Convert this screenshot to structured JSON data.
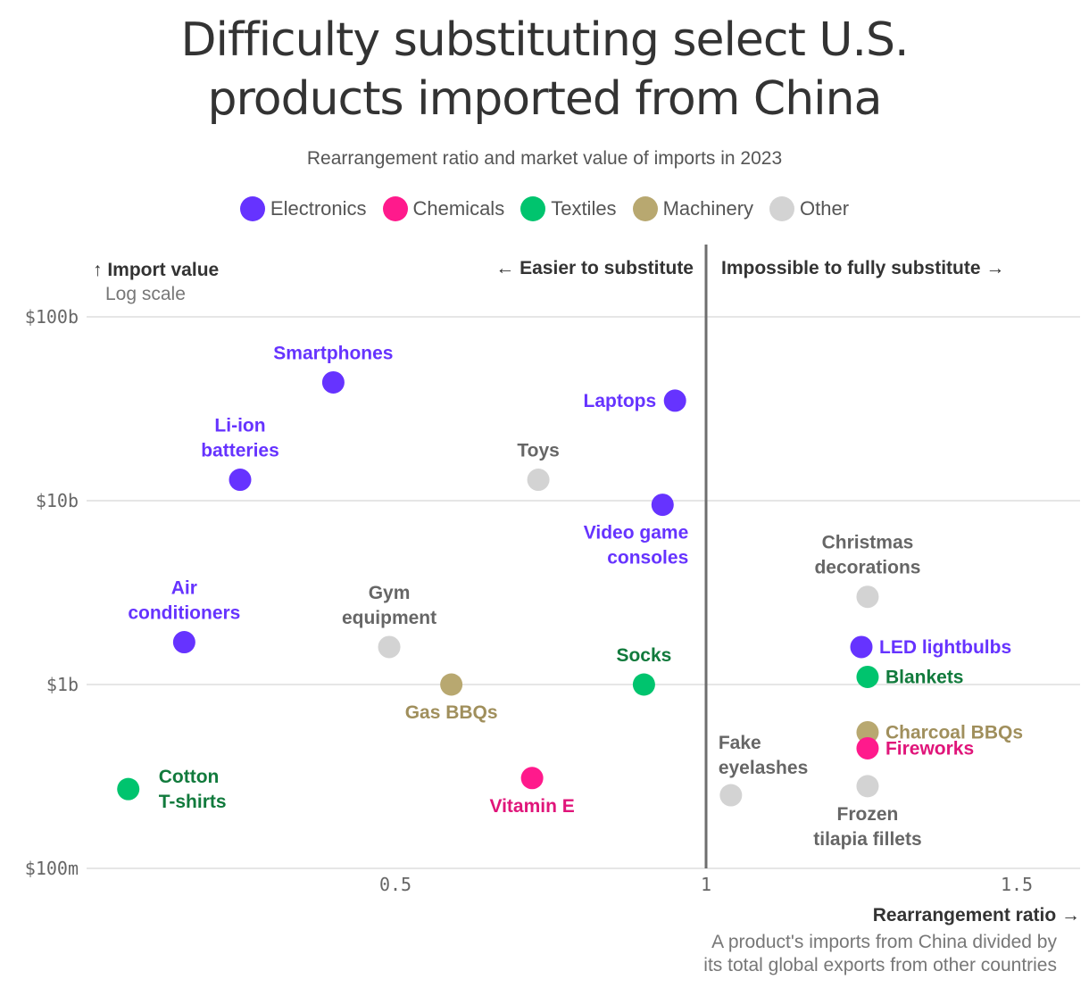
{
  "title_lines": [
    "Difficulty substituting select U.S.",
    "products imported from China"
  ],
  "subtitle": "Rearrangement ratio and market value of imports in 2023",
  "legend": [
    {
      "label": "Electronics",
      "color": "#6633ff"
    },
    {
      "label": "Chemicals",
      "color": "#ff1a8c"
    },
    {
      "label": "Textiles",
      "color": "#00c46e"
    },
    {
      "label": "Machinery",
      "color": "#b8a870"
    },
    {
      "label": "Other",
      "color": "#d3d3d3"
    }
  ],
  "y_axis": {
    "title": "↑ Import value",
    "note": "Log scale"
  },
  "x_axis": {
    "title": "Rearrangement ratio →",
    "note_lines": [
      "A product's imports from China divided by",
      "its total global exports from other countries"
    ]
  },
  "region_left": "← Easier to substitute",
  "region_right": "Impossible to fully substitute →",
  "chart_data": {
    "type": "scatter",
    "title": "Difficulty substituting select U.S. products imported from China",
    "subtitle": "Rearrangement ratio and market value of imports in 2023",
    "xlabel": "Rearrangement ratio",
    "ylabel": "Import value",
    "y_scale": "log",
    "xlim": [
      0.0,
      1.63
    ],
    "ylim": [
      0.1,
      100
    ],
    "x_ticks": [
      {
        "value": 0.5,
        "label": "0.5"
      },
      {
        "value": 1,
        "label": "1"
      },
      {
        "value": 1.5,
        "label": "1.5"
      }
    ],
    "y_ticks": [
      {
        "value": 100,
        "label": "$100b"
      },
      {
        "value": 10,
        "label": "$10b"
      },
      {
        "value": 1,
        "label": "$1b"
      },
      {
        "value": 0.1,
        "label": "$100m"
      }
    ],
    "reference_line_x": 1,
    "gridlines": "horizontal",
    "category_colors": {
      "Electronics": {
        "dot": "#6633ff",
        "label": "#6633ff"
      },
      "Chemicals": {
        "dot": "#ff1a8c",
        "label": "#e0157a"
      },
      "Textiles": {
        "dot": "#00c46e",
        "label": "#117a3c"
      },
      "Machinery": {
        "dot": "#b8a870",
        "label": "#a08f5c"
      },
      "Other": {
        "dot": "#d3d3d3",
        "label": "#666666"
      }
    },
    "points": [
      {
        "name": "Smartphones",
        "category": "Electronics",
        "x": 0.4,
        "y": 44,
        "label_lines": [
          "Smartphones"
        ],
        "label_pos": "above"
      },
      {
        "name": "Laptops",
        "category": "Electronics",
        "x": 0.95,
        "y": 35,
        "label_lines": [
          "Laptops"
        ],
        "label_pos": "left"
      },
      {
        "name": "Li-ion batteries",
        "category": "Electronics",
        "x": 0.25,
        "y": 13,
        "label_lines": [
          "Li-ion",
          "batteries"
        ],
        "label_pos": "above"
      },
      {
        "name": "Toys",
        "category": "Other",
        "x": 0.73,
        "y": 13,
        "label_lines": [
          "Toys"
        ],
        "label_pos": "above"
      },
      {
        "name": "Video game consoles",
        "category": "Electronics",
        "x": 0.93,
        "y": 9.5,
        "label_lines": [
          "Video game",
          "consoles"
        ],
        "label_pos": "below-left"
      },
      {
        "name": "Christmas decorations",
        "category": "Other",
        "x": 1.26,
        "y": 3.0,
        "label_lines": [
          "Christmas",
          "decorations"
        ],
        "label_pos": "above"
      },
      {
        "name": "Air conditioners",
        "category": "Electronics",
        "x": 0.16,
        "y": 1.7,
        "label_lines": [
          "Air",
          "conditioners"
        ],
        "label_pos": "above"
      },
      {
        "name": "Gym equipment",
        "category": "Other",
        "x": 0.49,
        "y": 1.6,
        "label_lines": [
          "Gym",
          "equipment"
        ],
        "label_pos": "above"
      },
      {
        "name": "LED lightbulbs",
        "category": "Electronics",
        "x": 1.25,
        "y": 1.6,
        "label_lines": [
          "LED lightbulbs"
        ],
        "label_pos": "right"
      },
      {
        "name": "Blankets",
        "category": "Textiles",
        "x": 1.26,
        "y": 1.1,
        "label_lines": [
          "Blankets"
        ],
        "label_pos": "right"
      },
      {
        "name": "Gas BBQs",
        "category": "Machinery",
        "x": 0.59,
        "y": 1.0,
        "label_lines": [
          "Gas BBQs"
        ],
        "label_pos": "below"
      },
      {
        "name": "Socks",
        "category": "Textiles",
        "x": 0.9,
        "y": 1.0,
        "label_lines": [
          "Socks"
        ],
        "label_pos": "above"
      },
      {
        "name": "Charcoal BBQs",
        "category": "Machinery",
        "x": 1.26,
        "y": 0.55,
        "label_lines": [
          "Charcoal BBQs"
        ],
        "label_pos": "right"
      },
      {
        "name": "Fireworks",
        "category": "Chemicals",
        "x": 1.26,
        "y": 0.45,
        "label_lines": [
          "Fireworks"
        ],
        "label_pos": "right"
      },
      {
        "name": "Vitamin E",
        "category": "Chemicals",
        "x": 0.72,
        "y": 0.31,
        "label_lines": [
          "Vitamin E"
        ],
        "label_pos": "below"
      },
      {
        "name": "Cotton T-shirts",
        "category": "Textiles",
        "x": 0.07,
        "y": 0.27,
        "label_lines": [
          "Cotton",
          "T-shirts"
        ],
        "label_pos": "right"
      },
      {
        "name": "Frozen tilapia fillets",
        "category": "Other",
        "x": 1.26,
        "y": 0.28,
        "label_lines": [
          "Frozen",
          "tilapia fillets"
        ],
        "label_pos": "below"
      },
      {
        "name": "Fake eyelashes",
        "category": "Other",
        "x": 1.04,
        "y": 0.25,
        "label_lines": [
          "Fake",
          "eyelashes"
        ],
        "label_pos": "above-right"
      }
    ]
  }
}
